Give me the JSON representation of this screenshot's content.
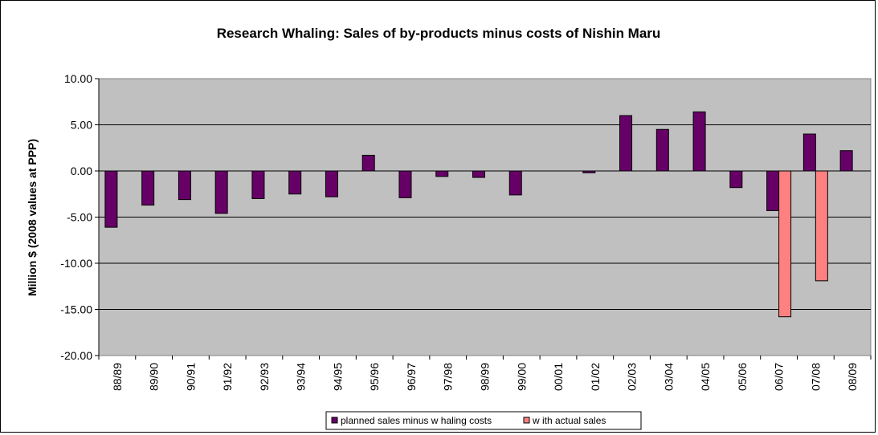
{
  "chart_data": {
    "type": "bar",
    "title": "Research Whaling: Sales of by-products minus costs of Nishin Maru",
    "xlabel": "",
    "ylabel": "Million $ (2008 values at PPP)",
    "ylim": [
      -20,
      10
    ],
    "ytick_step": 5,
    "ytick_labels": [
      "10.00",
      "5.00",
      "0.00",
      "-5.00",
      "-10.00",
      "-15.00",
      "-20.00"
    ],
    "grid": true,
    "legend_position": "bottom",
    "categories": [
      "88/89",
      "89/90",
      "90/91",
      "91/92",
      "92/93",
      "93/94",
      "94/95",
      "95/96",
      "96/97",
      "97/98",
      "98/99",
      "99/00",
      "00/01",
      "01/02",
      "02/03",
      "03/04",
      "04/05",
      "05/06",
      "06/07",
      "07/08",
      "08/09"
    ],
    "series": [
      {
        "name": "planned sales minus w haling costs",
        "color": "#660066",
        "values": [
          -6.1,
          -3.7,
          -3.1,
          -4.6,
          -3.0,
          -2.5,
          -2.8,
          1.7,
          -2.9,
          -0.6,
          -0.7,
          -2.6,
          0.0,
          -0.2,
          6.0,
          4.5,
          6.4,
          -1.8,
          -4.3,
          4.0,
          2.2
        ]
      },
      {
        "name": "w ith actual sales",
        "color": "#FF8080",
        "values": [
          null,
          null,
          null,
          null,
          null,
          null,
          null,
          null,
          null,
          null,
          null,
          null,
          null,
          null,
          null,
          null,
          null,
          null,
          -15.8,
          -11.9,
          null
        ]
      }
    ]
  }
}
